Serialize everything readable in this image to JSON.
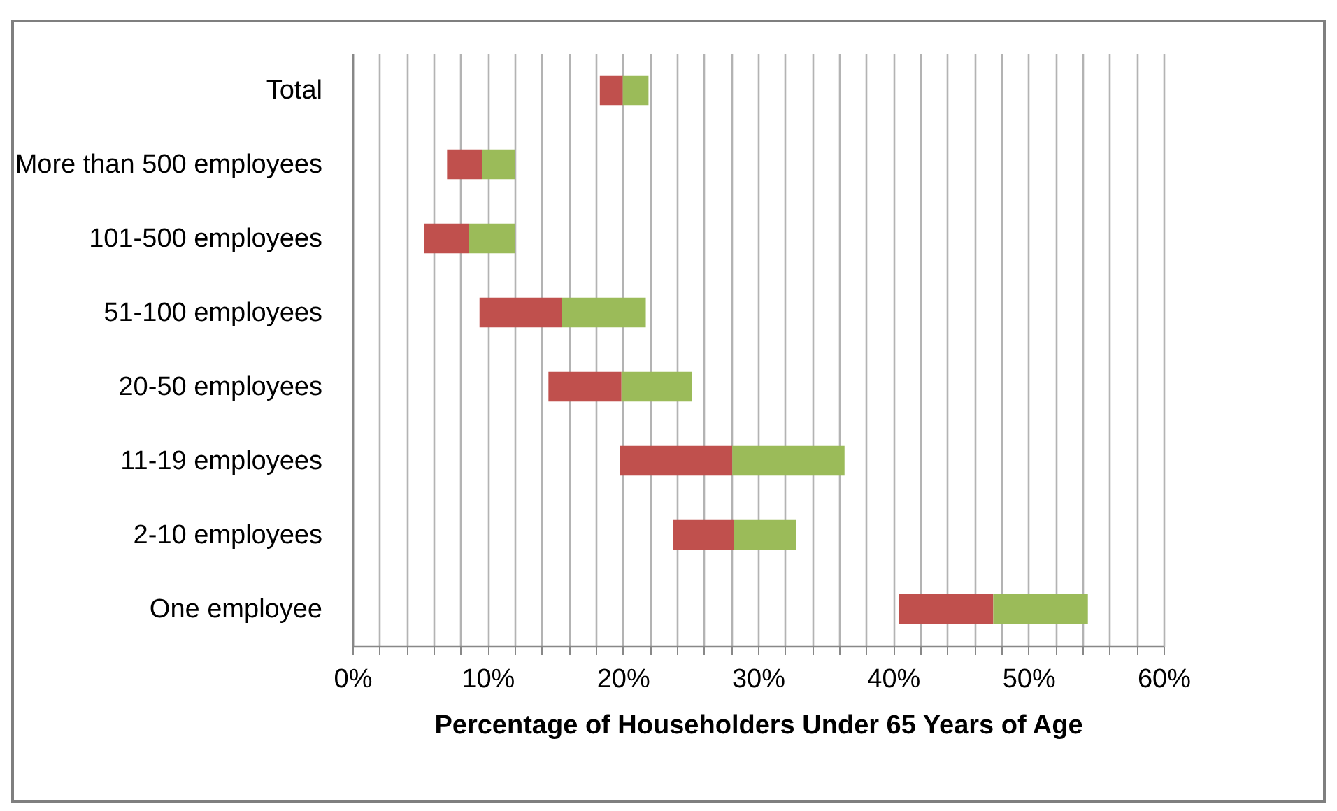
{
  "chart_data": {
    "type": "bar",
    "orientation": "horizontal",
    "xlabel": "Percentage of Householders Under 65 Years of Age",
    "categories": [
      "Total",
      "More than 500 employees",
      "101-500 employees",
      "51-100 employees",
      "20-50 employees",
      "11-19 employees",
      "2-10 employees",
      "One employee"
    ],
    "series": [
      {
        "color": "#c0504d",
        "base": [
          18.3,
          7.0,
          5.3,
          9.4,
          14.5,
          19.8,
          23.7,
          40.4
        ],
        "values": [
          1.7,
          2.6,
          3.3,
          6.1,
          5.4,
          8.3,
          4.5,
          7.0
        ]
      },
      {
        "color": "#9bbb59",
        "base": [
          20.0,
          9.6,
          8.6,
          15.5,
          19.9,
          28.1,
          28.2,
          47.4
        ],
        "values": [
          1.9,
          2.4,
          3.4,
          6.2,
          5.2,
          8.3,
          4.6,
          7.0
        ]
      }
    ],
    "xlim": [
      0,
      60
    ],
    "xticks": [
      {
        "value": 0,
        "label": "0%"
      },
      {
        "value": 2,
        "label": null
      },
      {
        "value": 4,
        "label": null
      },
      {
        "value": 6,
        "label": null
      },
      {
        "value": 8,
        "label": null
      },
      {
        "value": 10,
        "label": "10%"
      },
      {
        "value": 12,
        "label": null
      },
      {
        "value": 14,
        "label": null
      },
      {
        "value": 16,
        "label": null
      },
      {
        "value": 18,
        "label": null
      },
      {
        "value": 20,
        "label": "20%"
      },
      {
        "value": 22,
        "label": null
      },
      {
        "value": 24,
        "label": null
      },
      {
        "value": 26,
        "label": null
      },
      {
        "value": 28,
        "label": null
      },
      {
        "value": 30,
        "label": "30%"
      },
      {
        "value": 32,
        "label": null
      },
      {
        "value": 34,
        "label": null
      },
      {
        "value": 36,
        "label": null
      },
      {
        "value": 38,
        "label": null
      },
      {
        "value": 40,
        "label": "40%"
      },
      {
        "value": 42,
        "label": null
      },
      {
        "value": 44,
        "label": null
      },
      {
        "value": 46,
        "label": null
      },
      {
        "value": 48,
        "label": null
      },
      {
        "value": 50,
        "label": "50%"
      },
      {
        "value": 52,
        "label": null
      },
      {
        "value": 54,
        "label": null
      },
      {
        "value": 56,
        "label": null
      },
      {
        "value": 58,
        "label": null
      },
      {
        "value": 60,
        "label": "60%"
      }
    ],
    "grid": "x"
  }
}
